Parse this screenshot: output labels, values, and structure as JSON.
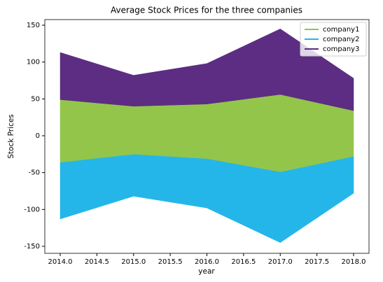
{
  "chart_data": {
    "type": "stream",
    "title": "Average Stock Prices for the three companies",
    "x_label": "year",
    "y_label": "Stock Prices",
    "x": [
      2014,
      2015,
      2016,
      2017,
      2018
    ],
    "series": [
      {
        "name": "company1",
        "color": "#93c54b",
        "values": [
          85,
          65,
          74,
          105,
          62
        ]
      },
      {
        "name": "company2",
        "color": "#24b6e8",
        "values": [
          77,
          57,
          67,
          96,
          50
        ]
      },
      {
        "name": "company3",
        "color": "#5c2d82",
        "values": [
          64,
          42,
          55,
          89,
          44
        ]
      }
    ],
    "stack_order": [
      1,
      0,
      2
    ],
    "baseline": "sym",
    "xlim": [
      2013.79,
      2018.21
    ],
    "ylim": [
      -159.5,
      157.6
    ],
    "xticks": [
      {
        "value": 2014,
        "label": "2014.0"
      },
      {
        "value": 2014.5,
        "label": "2014.5"
      },
      {
        "value": 2015,
        "label": "2015.0"
      },
      {
        "value": 2015.5,
        "label": "2015.5"
      },
      {
        "value": 2016,
        "label": "2016.0"
      },
      {
        "value": 2016.5,
        "label": "2016.5"
      },
      {
        "value": 2017,
        "label": "2017.0"
      },
      {
        "value": 2017.5,
        "label": "2017.5"
      },
      {
        "value": 2018,
        "label": "2018.0"
      }
    ],
    "yticks": [
      -150,
      -100,
      -50,
      0,
      50,
      100,
      150
    ],
    "legend": "upper right"
  }
}
